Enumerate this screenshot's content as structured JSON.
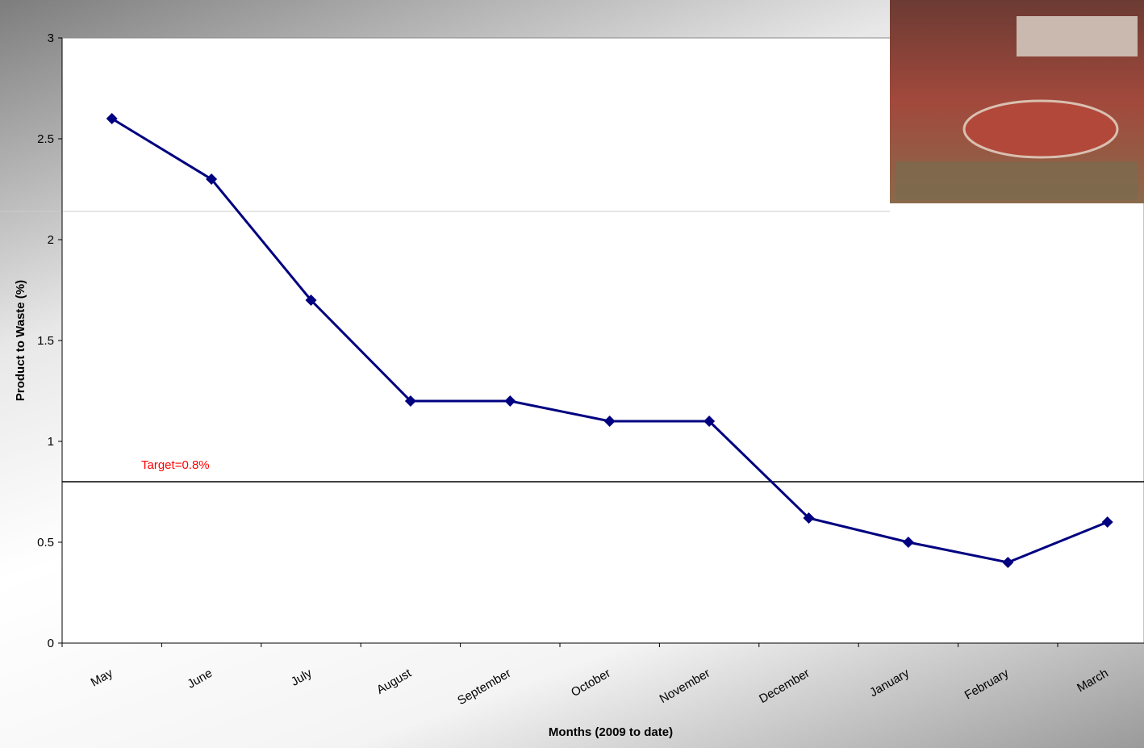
{
  "chart_data": {
    "type": "line",
    "x_label": "Months (2009 to date)",
    "y_label": "Product to Waste (%)",
    "categories": [
      "May",
      "June",
      "July",
      "August",
      "September",
      "October",
      "November",
      "December",
      "January",
      "February",
      "March"
    ],
    "series": [
      {
        "color": "#000080",
        "values": [
          2.6,
          2.3,
          1.7,
          1.2,
          1.2,
          1.1,
          1.1,
          0.62,
          0.5,
          0.4,
          0.6
        ]
      }
    ],
    "ylim": [
      0,
      3
    ],
    "yticks": [
      0,
      0.5,
      1,
      1.5,
      2,
      2.5,
      3
    ],
    "grid": false,
    "target": {
      "value": 0.8,
      "label": "Target=0.8%",
      "color": "#ff0000"
    }
  }
}
